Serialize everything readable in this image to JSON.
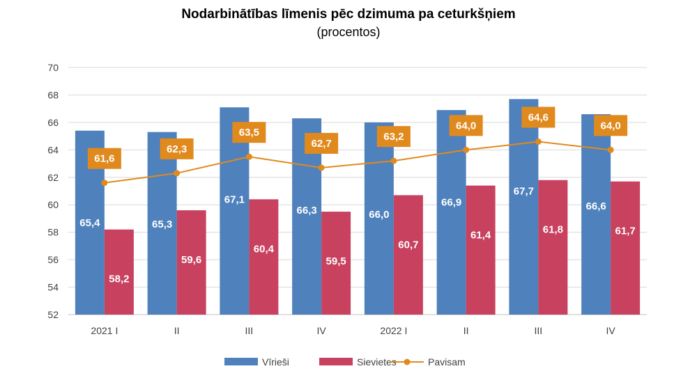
{
  "chart_data": {
    "type": "bar",
    "title": "Nodarbinātības līmenis pēc dzimuma pa ceturkšņiem",
    "subtitle": "(procentos)",
    "categories": [
      "2021 I",
      "II",
      "III",
      "IV",
      "2022 I",
      "II",
      "III",
      "IV"
    ],
    "series": [
      {
        "name": "Vīrieši",
        "kind": "bar",
        "color": "#4f81bd",
        "values": [
          65.4,
          65.3,
          67.1,
          66.3,
          66.0,
          66.9,
          67.7,
          66.6
        ],
        "labels": [
          "65,4",
          "65,3",
          "67,1",
          "66,3",
          "66,0",
          "66,9",
          "67,7",
          "66,6"
        ]
      },
      {
        "name": "Sievietes",
        "kind": "bar",
        "color": "#c8415f",
        "values": [
          58.2,
          59.6,
          60.4,
          59.5,
          60.7,
          61.4,
          61.8,
          61.7
        ],
        "labels": [
          "58,2",
          "59,6",
          "60,4",
          "59,5",
          "60,7",
          "61,4",
          "61,8",
          "61,7"
        ]
      },
      {
        "name": "Pavisam",
        "kind": "line",
        "color": "#e08a1e",
        "values": [
          61.6,
          62.3,
          63.5,
          62.7,
          63.2,
          64.0,
          64.6,
          64.0
        ],
        "labels": [
          "61,6",
          "62,3",
          "63,5",
          "62,7",
          "63,2",
          "64,0",
          "64,6",
          "64,0"
        ]
      }
    ],
    "ylim": [
      52,
      70
    ],
    "yticks": [
      52,
      54,
      56,
      58,
      60,
      62,
      64,
      66,
      68,
      70
    ],
    "grid": true,
    "legend_position": "bottom",
    "xlabel": "",
    "ylabel": ""
  }
}
